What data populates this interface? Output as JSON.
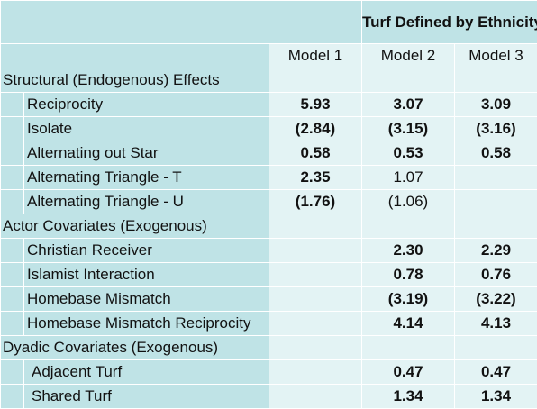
{
  "header": {
    "group_title": "Turf Defined by Ethnicity",
    "models": [
      "Model 1",
      "Model 2",
      "Model 3"
    ]
  },
  "rows": [
    {
      "type": "section",
      "label": "Structural (Endogenous) Effects"
    },
    {
      "type": "data",
      "label": "Reciprocity",
      "m1": "5.93",
      "m2": "3.07",
      "m3": "3.09"
    },
    {
      "type": "data",
      "label": "Isolate",
      "m1": "(2.84)",
      "m2": "(3.15)",
      "m3": "(3.16)"
    },
    {
      "type": "data",
      "label": "Alternating out Star",
      "m1": "0.58",
      "m2": "0.53",
      "m3": "0.58"
    },
    {
      "type": "data",
      "label": "Alternating Triangle - T",
      "m1": "2.35",
      "m2": "1.07",
      "m3": ""
    },
    {
      "type": "data",
      "label": "Alternating Triangle - U",
      "m1": "(1.76)",
      "m2": "(1.06)",
      "m3": ""
    },
    {
      "type": "section",
      "label": "Actor Covariates (Exogenous)"
    },
    {
      "type": "data",
      "label": "Christian Receiver",
      "m1": "",
      "m2": "2.30",
      "m3": "2.29"
    },
    {
      "type": "data",
      "label": "Islamist Interaction",
      "m1": "",
      "m2": "0.78",
      "m3": "0.76"
    },
    {
      "type": "data",
      "label": "Homebase Mismatch",
      "m1": "",
      "m2": "(3.19)",
      "m3": "(3.22)"
    },
    {
      "type": "data",
      "label": "Homebase Mismatch Reciprocity",
      "m1": "",
      "m2": "4.14",
      "m3": "4.13"
    },
    {
      "type": "section",
      "label": "Dyadic Covariates (Exogenous)"
    },
    {
      "type": "data",
      "label": "Adjacent Turf",
      "m1": "",
      "m2": "0.47",
      "m3": "0.47"
    },
    {
      "type": "data",
      "label": "Shared Turf",
      "m1": "",
      "m2": "1.34",
      "m3": "1.34"
    }
  ]
}
